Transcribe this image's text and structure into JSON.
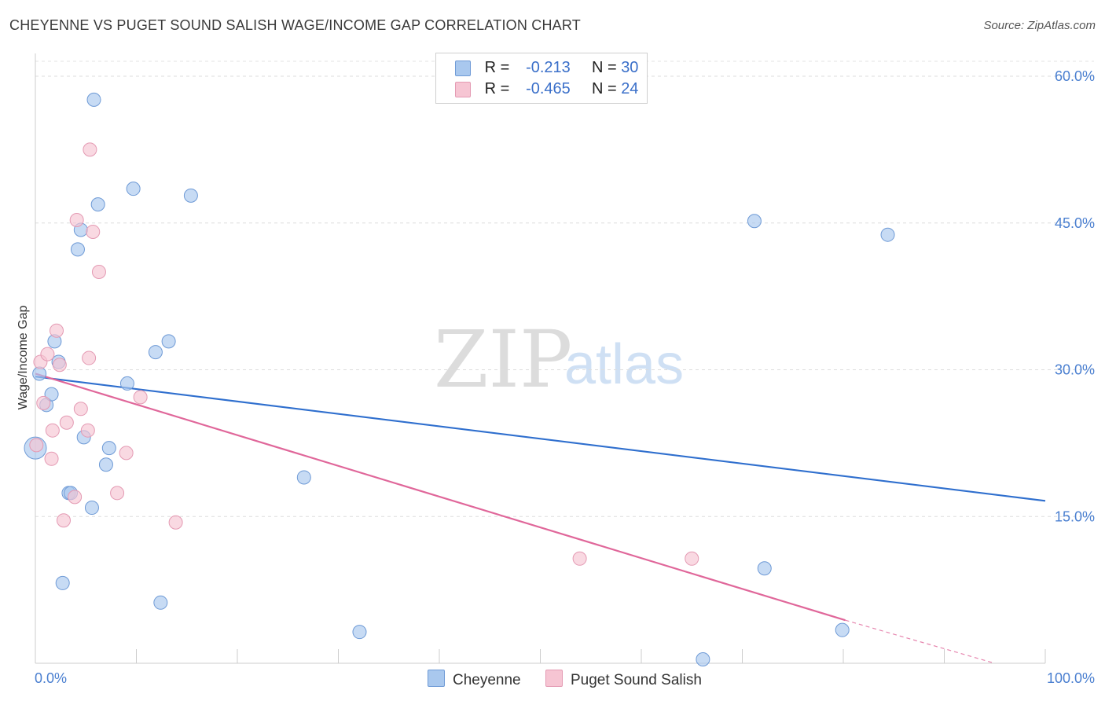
{
  "header": {
    "title": "CHEYENNE VS PUGET SOUND SALISH WAGE/INCOME GAP CORRELATION CHART",
    "source": "Source: ZipAtlas.com"
  },
  "legend": {
    "rows": [
      {
        "r_label": "R =",
        "r_value": "-0.213",
        "n_label": "N =",
        "n_value": "30",
        "color": "#a9c8ee",
        "border": "#6e9ad6"
      },
      {
        "r_label": "R =",
        "r_value": "-0.465",
        "n_label": "N =",
        "n_value": "24",
        "color": "#f6c5d3",
        "border": "#e49ab3"
      }
    ]
  },
  "bottom_legend": {
    "items": [
      {
        "label": "Cheyenne",
        "color": "#a9c8ee"
      },
      {
        "label": "Puget Sound Salish",
        "color": "#f6c5d3"
      }
    ]
  },
  "watermark": {
    "zip": "ZIP",
    "atlas": "atlas"
  },
  "chart_data": {
    "type": "scatter",
    "title": "CHEYENNE VS PUGET SOUND SALISH WAGE/INCOME GAP CORRELATION CHART",
    "xlabel": "",
    "ylabel": "Wage/Income Gap",
    "xlim": [
      0,
      100
    ],
    "ylim": [
      0,
      60
    ],
    "x_tick_labels": [
      "0.0%",
      "100.0%"
    ],
    "y_ticks": [
      15,
      30,
      45,
      60
    ],
    "y_tick_labels": [
      "15.0%",
      "30.0%",
      "45.0%",
      "60.0%"
    ],
    "grid": true,
    "series": [
      {
        "name": "Cheyenne",
        "color": "#a9c8ee",
        "stroke": "#6e9ad6",
        "line_color": "#2f6fce",
        "trend": {
          "x": [
            0,
            100
          ],
          "y": [
            29.3,
            16.6
          ]
        },
        "points": [
          [
            0.0,
            22.0
          ],
          [
            0.4,
            29.6
          ],
          [
            1.1,
            26.4
          ],
          [
            1.6,
            27.5
          ],
          [
            1.9,
            32.9
          ],
          [
            2.3,
            30.8
          ],
          [
            2.7,
            8.2
          ],
          [
            3.3,
            17.4
          ],
          [
            3.5,
            17.4
          ],
          [
            4.2,
            42.3
          ],
          [
            4.5,
            44.3
          ],
          [
            4.8,
            23.1
          ],
          [
            5.6,
            15.9
          ],
          [
            5.8,
            57.6
          ],
          [
            6.2,
            46.9
          ],
          [
            7.0,
            20.3
          ],
          [
            7.3,
            22.0
          ],
          [
            9.1,
            28.6
          ],
          [
            9.7,
            48.5
          ],
          [
            11.9,
            31.8
          ],
          [
            12.4,
            6.2
          ],
          [
            13.2,
            32.9
          ],
          [
            15.4,
            47.8
          ],
          [
            26.6,
            19.0
          ],
          [
            32.1,
            3.2
          ],
          [
            66.1,
            0.4
          ],
          [
            71.2,
            45.2
          ],
          [
            72.2,
            9.7
          ],
          [
            79.9,
            3.4
          ],
          [
            84.4,
            43.8
          ]
        ]
      },
      {
        "name": "Puget Sound Salish",
        "color": "#f6c5d3",
        "stroke": "#e49ab3",
        "line_color": "#e0679a",
        "trend": {
          "x": [
            0,
            80.2
          ],
          "y": [
            29.6,
            4.4
          ]
        },
        "trend_dashed": {
          "x": [
            80.2,
            95.0
          ],
          "y": [
            4.4,
            0.0
          ]
        },
        "points": [
          [
            0.5,
            30.8
          ],
          [
            0.8,
            26.6
          ],
          [
            1.2,
            31.6
          ],
          [
            1.6,
            20.9
          ],
          [
            1.7,
            23.8
          ],
          [
            2.1,
            34.0
          ],
          [
            2.4,
            30.5
          ],
          [
            2.8,
            14.6
          ],
          [
            3.1,
            24.6
          ],
          [
            3.9,
            17.0
          ],
          [
            4.1,
            45.3
          ],
          [
            4.5,
            26.0
          ],
          [
            5.2,
            23.8
          ],
          [
            5.3,
            31.2
          ],
          [
            5.4,
            52.5
          ],
          [
            5.7,
            44.1
          ],
          [
            6.3,
            40.0
          ],
          [
            8.1,
            17.4
          ],
          [
            9.0,
            21.5
          ],
          [
            10.4,
            27.2
          ],
          [
            13.9,
            14.4
          ],
          [
            53.9,
            10.7
          ],
          [
            65.0,
            10.7
          ],
          [
            0.1,
            22.3
          ]
        ]
      }
    ]
  }
}
